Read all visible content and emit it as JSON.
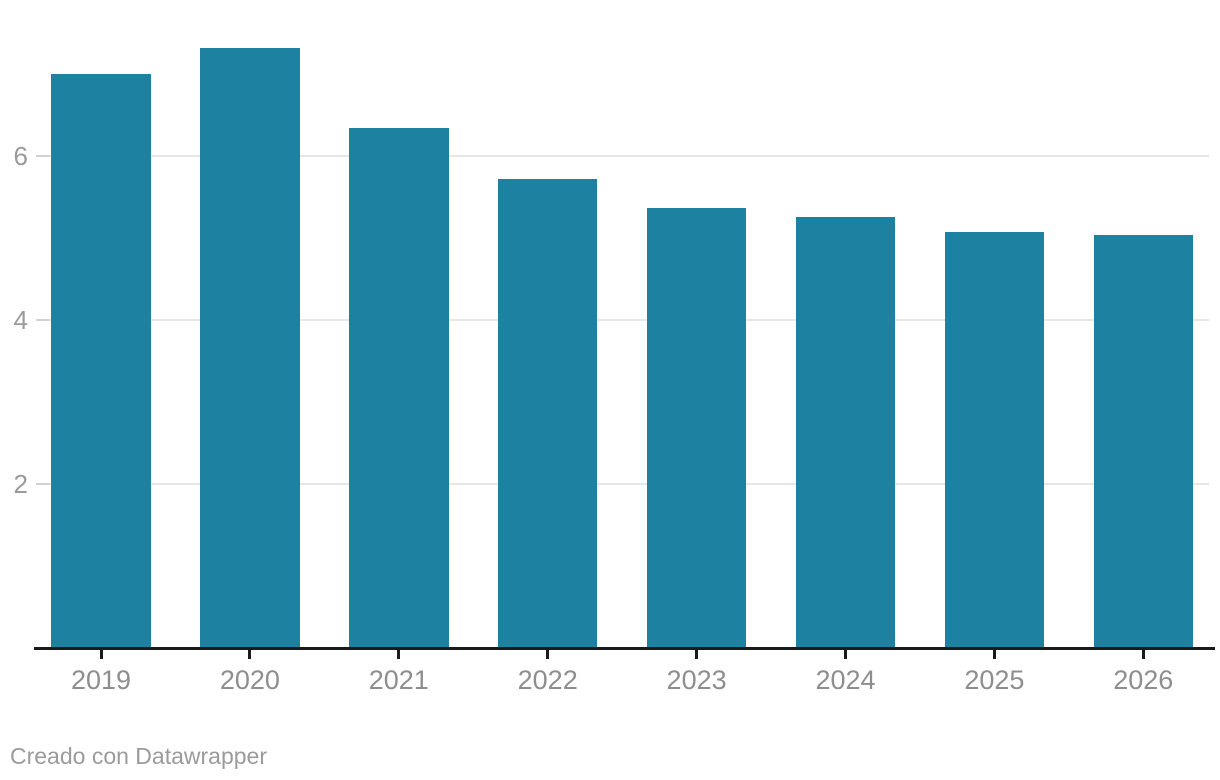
{
  "chart_data": {
    "type": "bar",
    "categories": [
      "2019",
      "2020",
      "2021",
      "2022",
      "2023",
      "2024",
      "2025",
      "2026"
    ],
    "values": [
      7.01,
      7.32,
      6.35,
      5.72,
      5.37,
      5.26,
      5.08,
      5.04
    ],
    "yticks": [
      2,
      4,
      6
    ],
    "ytick_labels": [
      "2",
      "4",
      "6"
    ],
    "ylim": [
      0,
      7.9
    ],
    "grid": "horizontal-only",
    "legend": "none",
    "bar_color": "#1d81a2"
  },
  "footer": {
    "attribution": "Creado con Datawrapper"
  },
  "colors": {
    "bar": "#1d81a2",
    "axis_line": "#1a1a1a",
    "gridline": "#e7e7e7",
    "tick_dash": "#d2d2d2",
    "y_label": "#9a9a9a",
    "x_label": "#8e8e8e",
    "footer_text": "#9b9b9b",
    "background": "#ffffff"
  }
}
